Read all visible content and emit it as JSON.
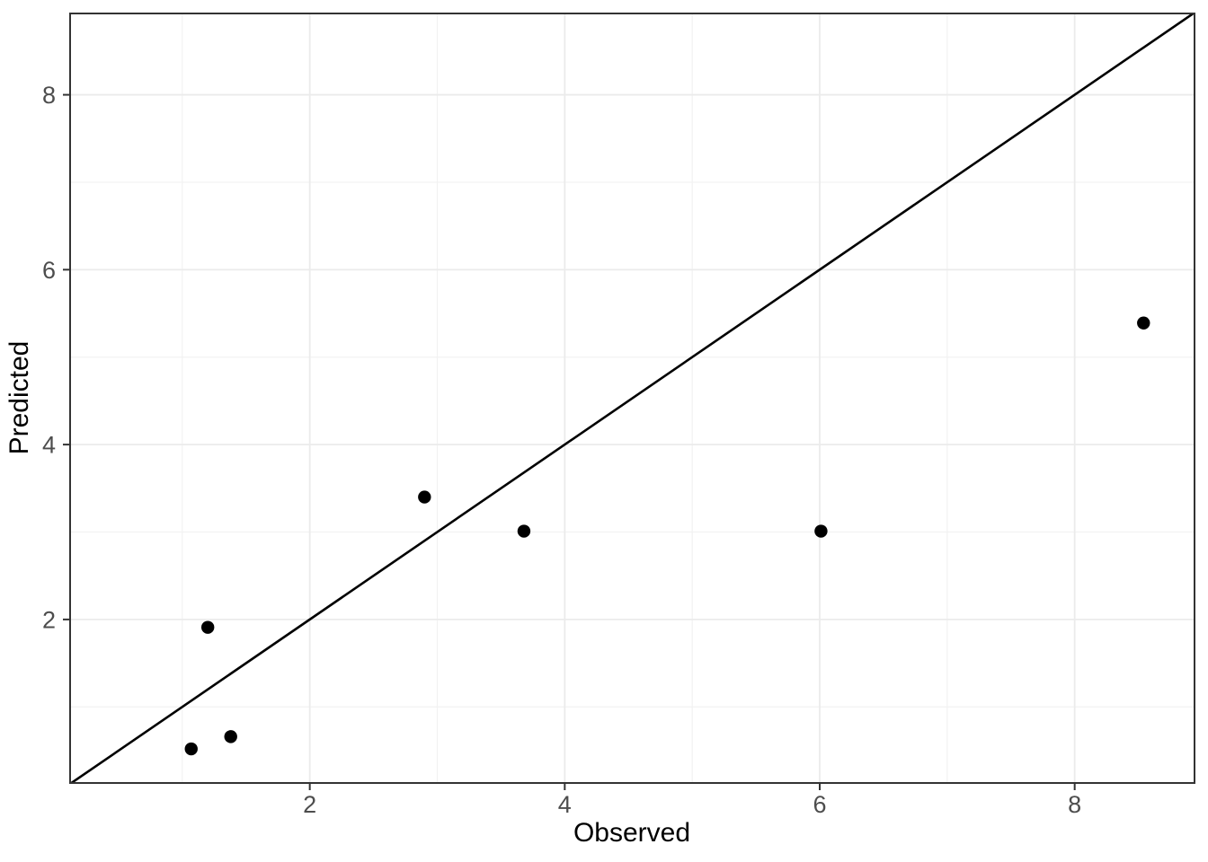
{
  "chart_data": {
    "type": "scatter",
    "title": "",
    "xlabel": "Observed",
    "ylabel": "Predicted",
    "xlim": [
      0.12,
      8.94
    ],
    "ylim": [
      0.13,
      8.93
    ],
    "x_major_ticks": [
      2,
      4,
      6,
      8
    ],
    "y_major_ticks": [
      2,
      4,
      6,
      8
    ],
    "x_tick_labels": [
      "2",
      "4",
      "6",
      "8"
    ],
    "y_tick_labels": [
      "2",
      "4",
      "6",
      "8"
    ],
    "x_minor_gridlines": [
      1,
      3,
      5,
      7
    ],
    "y_minor_gridlines": [
      1,
      3,
      5,
      7
    ],
    "grid": true,
    "legend": "none",
    "points": [
      {
        "observed": 1.07,
        "predicted": 0.52
      },
      {
        "observed": 1.38,
        "predicted": 0.66
      },
      {
        "observed": 1.2,
        "predicted": 1.91
      },
      {
        "observed": 2.9,
        "predicted": 3.4
      },
      {
        "observed": 3.68,
        "predicted": 3.01
      },
      {
        "observed": 6.01,
        "predicted": 3.01
      },
      {
        "observed": 8.54,
        "predicted": 5.39
      }
    ],
    "identity_line": {
      "slope": 1,
      "intercept": 0
    },
    "style": {
      "background": "#ffffff",
      "panel_background": "#ffffff",
      "panel_border_color": "#333333",
      "grid_major_color": "#ebebeb",
      "grid_minor_color": "#f2f2f2",
      "point_color": "#000000",
      "line_color": "#000000",
      "tick_mark_color": "#333333",
      "tick_label_color": "#4d4d4d",
      "axis_title_color": "#000000"
    }
  }
}
